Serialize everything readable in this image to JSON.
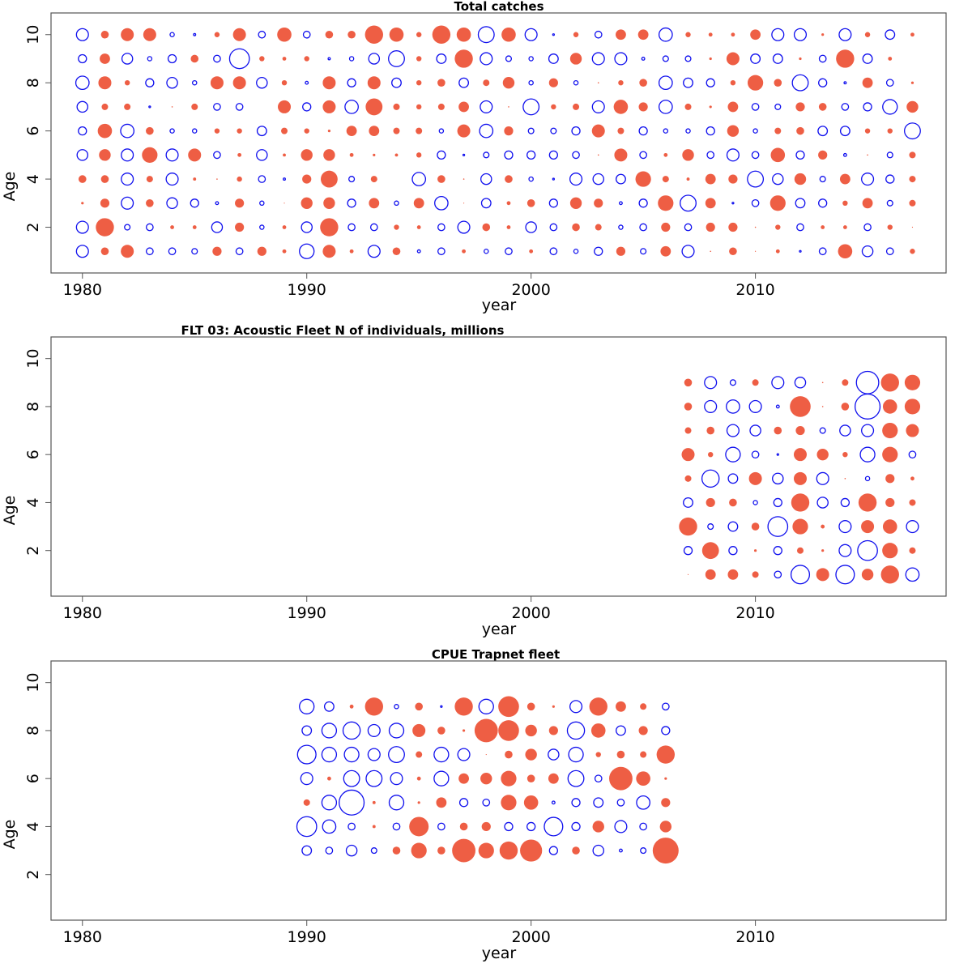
{
  "chart_data": [
    {
      "type": "scatter",
      "subtype": "bubble",
      "title": "Total catches",
      "xlabel": "year",
      "ylabel": "Age",
      "xlim": [
        1978.6,
        2018.5
      ],
      "ylim": [
        0.1,
        10.9
      ],
      "xticks": [
        "1980",
        "1990",
        "2000",
        "2010"
      ],
      "yticks": [
        "2",
        "4",
        "6",
        "8",
        "10"
      ],
      "encoding": "value sign: negative = filled red, positive = open blue; bubble area proportional to |value|",
      "colors": {
        "negative": "#EE5E44",
        "positive": "#1010EE"
      },
      "years_start": 1980,
      "ages": [
        10,
        9,
        8,
        7,
        6,
        5,
        4,
        3,
        2,
        1
      ],
      "values": [
        [
          5,
          -3,
          -5,
          -5,
          2,
          1.2,
          -2,
          -5,
          3,
          -5.5,
          3,
          -3,
          -3,
          -7,
          -5.5,
          -2,
          -7,
          -5.5,
          6.5,
          -5.5,
          5,
          1,
          -2,
          3,
          -4,
          -4,
          5.5,
          -2,
          -1.5,
          -1.5,
          -4,
          5,
          5,
          -1,
          5,
          -2,
          4,
          -1.5
        ],
        [
          3.5,
          -4,
          4.5,
          2,
          3.5,
          -3,
          3,
          8,
          -2,
          -1.5,
          -2,
          1.2,
          2,
          4.5,
          6.5,
          -2,
          4,
          -7,
          5,
          2.5,
          2,
          4,
          -4.5,
          5,
          5,
          1.5,
          2.5,
          2.5,
          -1,
          -5,
          4,
          4,
          -1,
          3,
          -7,
          4,
          -1.5,
          0
        ],
        [
          5.5,
          -5,
          -2,
          3.5,
          4.5,
          2,
          -5,
          -5,
          4.5,
          -2,
          1.5,
          -5,
          3.5,
          -5,
          4,
          -2,
          -3,
          4,
          -2.5,
          -4.5,
          2,
          -3.5,
          2,
          -0.5,
          -2,
          -3,
          5.5,
          4,
          3.5,
          -2,
          -6,
          -3,
          6.5,
          3.5,
          1.2,
          -4,
          3,
          -1
        ],
        [
          4.5,
          -2.5,
          -2.5,
          1,
          -0.5,
          -2.5,
          3,
          3,
          0,
          -5,
          3.5,
          -5,
          5.5,
          -6.5,
          -2.5,
          -2,
          -2.5,
          -4,
          5,
          -0.5,
          6.5,
          -2,
          -2.5,
          5,
          -5.5,
          -3.5,
          5.5,
          -2.5,
          -1,
          -4,
          3,
          2.5,
          -3.5,
          -3,
          3,
          3.5,
          6,
          -4.5
        ],
        [
          3.5,
          -5.5,
          5.5,
          -3,
          2,
          2,
          -2,
          -2,
          4,
          -2.5,
          -2,
          -1,
          -4,
          -4,
          -2.5,
          -2.5,
          2,
          -5,
          5.5,
          -3.5,
          2.5,
          2.5,
          3.5,
          -5,
          -2.5,
          3.5,
          2,
          2,
          3.5,
          -4.5,
          2,
          -2.5,
          -3,
          4,
          4,
          -2,
          -2,
          6.5
        ],
        [
          4.5,
          -4.5,
          5,
          -6,
          5,
          -5,
          3,
          -1.5,
          4.5,
          -1.2,
          -4.5,
          -4.5,
          -1.5,
          -1,
          -1.2,
          -2,
          3.5,
          1,
          2.5,
          3.5,
          3.5,
          3.5,
          3,
          -0.5,
          -5,
          3,
          -1.5,
          -4.5,
          3,
          5,
          3,
          -5.5,
          3.5,
          -3.5,
          1.5,
          -0.5,
          2.5,
          -2.5
        ],
        [
          -3,
          -3,
          5,
          -2.5,
          5,
          -1.2,
          -0.5,
          -2,
          3,
          1.2,
          -3.5,
          -6.5,
          2.5,
          -2.5,
          0,
          5.5,
          -3,
          -0.5,
          4.5,
          -3,
          2,
          1,
          5,
          4.5,
          4,
          -6,
          -2.5,
          -1.2,
          -4,
          -3.5,
          6.5,
          4.5,
          -4.5,
          2.5,
          -4,
          5,
          3.5,
          -2.5
        ],
        [
          -1,
          -3.5,
          5,
          -3,
          4.5,
          3.5,
          1.5,
          -3.5,
          2,
          -0.3,
          -4.5,
          -4.5,
          3.5,
          -4,
          2,
          -4,
          5.5,
          -0.3,
          4,
          -1.5,
          -3,
          3.5,
          -4.5,
          -3.5,
          1.5,
          3.5,
          -6,
          6.5,
          -4,
          1,
          3,
          -6,
          4,
          3.5,
          -2,
          -4,
          2.5,
          -2.5
        ],
        [
          5,
          -7,
          2.5,
          3,
          -1.5,
          -1.5,
          4.5,
          -3.5,
          2,
          -1.5,
          4.5,
          -7,
          3,
          3,
          -2,
          -1.5,
          3,
          5,
          -3,
          -1.5,
          4.5,
          3,
          -3,
          -2.5,
          2,
          3,
          -3.5,
          3,
          -3.5,
          -3.5,
          -0.5,
          -2,
          3,
          -1.5,
          -1.5,
          3,
          -2,
          -0.3
        ],
        [
          5,
          -3,
          -5,
          3,
          3,
          2.5,
          -3.5,
          3,
          -3.5,
          -1.5,
          6,
          -5,
          -1.5,
          5,
          -3,
          1.5,
          3,
          -1.5,
          2,
          3,
          -1.5,
          3,
          2,
          3.5,
          -3.5,
          2.5,
          -4,
          5,
          -0.5,
          -3,
          -0.3,
          -1.5,
          1,
          3,
          -5.5,
          4.5,
          3,
          -2
        ]
      ]
    },
    {
      "type": "scatter",
      "subtype": "bubble",
      "title": "FLT 03: Acoustic Fleet   N of individuals, millions",
      "xlabel": "year",
      "ylabel": "Age",
      "xlim": [
        1978.6,
        2018.5
      ],
      "ylim": [
        0.1,
        10.9
      ],
      "xticks": [
        "1980",
        "1990",
        "2000",
        "2010"
      ],
      "yticks": [
        "2",
        "4",
        "6",
        "8",
        "10"
      ],
      "encoding": "value sign: negative = filled red, positive = open blue; bubble area proportional to |value|",
      "colors": {
        "negative": "#EE5E44",
        "positive": "#1010EE"
      },
      "years_start": 2007,
      "ages": [
        9,
        8,
        7,
        6,
        5,
        4,
        3,
        2,
        1
      ],
      "values": [
        [
          -3,
          5,
          2.5,
          -2.5,
          5,
          4.5,
          -0.5,
          -2.5,
          9,
          -7,
          -6
        ],
        [
          -3,
          5,
          5.5,
          5,
          1.5,
          -8,
          -0.5,
          -3,
          10,
          -5.5,
          -6
        ],
        [
          -2.5,
          -3,
          5,
          4.5,
          -3,
          -3.5,
          2.5,
          4.5,
          5,
          -6,
          -5
        ],
        [
          -5,
          -2,
          6,
          3,
          1,
          -5,
          -4.5,
          -2,
          6,
          -6,
          3
        ],
        [
          -2.5,
          7,
          4,
          -5,
          4.5,
          -5,
          5,
          -0.5,
          2,
          -3.5,
          -1.5
        ],
        [
          4,
          -3.5,
          -3,
          2,
          3.5,
          -7,
          4.5,
          3.5,
          -7,
          -3.5,
          -2.5
        ],
        [
          -7,
          2.5,
          4,
          -3,
          8,
          -6,
          -1.5,
          5,
          -5,
          -5.5,
          5
        ],
        [
          3.5,
          -6.5,
          3.5,
          -1,
          3.5,
          -2.5,
          -1,
          5,
          8,
          -6,
          -2.5
        ],
        [
          -0.3,
          -4,
          -4,
          -2.5,
          3,
          7.5,
          -5,
          7.5,
          -4.5,
          -7,
          5.5
        ]
      ]
    },
    {
      "type": "scatter",
      "subtype": "bubble",
      "title": "CPUE Trapnet fleet",
      "xlabel": "year",
      "ylabel": "Age",
      "xlim": [
        1978.6,
        2018.5
      ],
      "ylim": [
        0.1,
        10.9
      ],
      "xticks": [
        "1980",
        "1990",
        "2000",
        "2010"
      ],
      "yticks": [
        "2",
        "4",
        "6",
        "8",
        "10"
      ],
      "encoding": "value sign: negative = filled red, positive = open blue; bubble area proportional to |value|",
      "colors": {
        "negative": "#EE5E44",
        "positive": "#1010EE"
      },
      "years_start": 1990,
      "ages": [
        9,
        8,
        7,
        6,
        5,
        4,
        3
      ],
      "values": [
        [
          6,
          4,
          -1.5,
          -7,
          2,
          -3,
          1,
          -7,
          6,
          -8,
          -3,
          -1,
          5,
          -7,
          -4,
          -2.5,
          3
        ],
        [
          4,
          6,
          7,
          5,
          6,
          -5,
          -3,
          -1,
          -9,
          -8,
          -4.5,
          -3.5,
          7,
          -5.5,
          4,
          -3.5,
          3.5
        ],
        [
          7.5,
          6,
          6,
          5,
          6.5,
          -2.5,
          6,
          5,
          -0.3,
          -3,
          -4.5,
          4.5,
          6,
          -2,
          -3,
          -2.5,
          -7
        ],
        [
          5,
          -1.5,
          6.5,
          6.5,
          5,
          -1.5,
          6,
          -4,
          -4.5,
          -6,
          -3,
          -4,
          6.5,
          3,
          -9,
          -5.5,
          -1
        ],
        [
          -2.5,
          6,
          10,
          -1.2,
          6,
          -1,
          -4,
          3.5,
          3,
          -6,
          -5.5,
          1.5,
          3.5,
          4,
          3,
          5.5,
          -3.5
        ],
        [
          8,
          5.5,
          3,
          -1.2,
          3,
          -7.5,
          3,
          -3,
          -3.5,
          3.5,
          3.5,
          7.5,
          3.5,
          -4.5,
          5,
          3,
          -4.5
        ],
        [
          4,
          3,
          4.5,
          2.5,
          -3,
          -6,
          -3,
          -9,
          -6,
          -7,
          -8.5,
          3.5,
          -3,
          4.5,
          1.5,
          2.5,
          -10
        ]
      ]
    }
  ]
}
